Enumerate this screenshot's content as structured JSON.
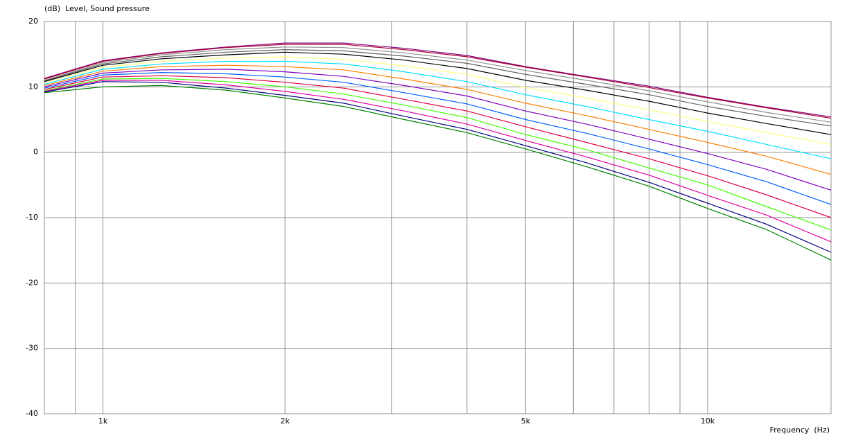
{
  "chart_data": {
    "type": "line",
    "y_label": "(dB)  Level, Sound pressure",
    "x_label": "Frequency  (Hz)",
    "x_log": true,
    "grid": true,
    "xlim": [
      800,
      16000
    ],
    "ylim": [
      -40,
      20
    ],
    "xticks": [
      {
        "value": 1000,
        "label": "1k"
      },
      {
        "value": 2000,
        "label": "2k"
      },
      {
        "value": 5000,
        "label": "5k"
      },
      {
        "value": 10000,
        "label": "10k"
      }
    ],
    "x_minor_ticks": [
      900,
      3000,
      4000,
      6000,
      7000,
      8000,
      9000
    ],
    "yticks": [
      20,
      10,
      0,
      -10,
      -20,
      -30,
      -40
    ],
    "x": [
      800,
      1000,
      1250,
      1600,
      2000,
      2500,
      3150,
      4000,
      5000,
      6300,
      8000,
      10000,
      12500,
      16000
    ],
    "series": [
      {
        "color": "#800080",
        "values": [
          11.3,
          14.0,
          15.2,
          16.1,
          16.7,
          16.7,
          15.9,
          14.8,
          13.1,
          11.6,
          10.1,
          8.4,
          6.9,
          5.4
        ]
      },
      {
        "color": "#b00030",
        "values": [
          11.2,
          13.9,
          15.1,
          16.0,
          16.5,
          16.5,
          15.7,
          14.6,
          13.0,
          11.5,
          9.9,
          8.3,
          6.8,
          5.2
        ]
      },
      {
        "color": "#909090",
        "values": [
          11.0,
          13.7,
          14.9,
          15.7,
          16.1,
          16.0,
          15.2,
          14.1,
          12.5,
          11.0,
          9.4,
          7.7,
          6.1,
          4.6
        ]
      },
      {
        "color": "#606060",
        "values": [
          10.9,
          13.5,
          14.6,
          15.3,
          15.7,
          15.5,
          14.7,
          13.6,
          11.9,
          10.4,
          8.8,
          7.0,
          5.5,
          4.0
        ]
      },
      {
        "color": "#000000",
        "values": [
          10.8,
          13.3,
          14.3,
          14.9,
          15.3,
          15.0,
          14.1,
          12.8,
          11.0,
          9.5,
          7.8,
          6.0,
          4.4,
          2.7
        ]
      },
      {
        "color": "#ffff80",
        "values": [
          10.6,
          13.0,
          13.9,
          14.4,
          14.6,
          14.2,
          13.2,
          11.9,
          9.9,
          8.3,
          6.5,
          4.7,
          3.0,
          1.2
        ]
      },
      {
        "color": "#00e0ff",
        "values": [
          10.4,
          12.7,
          13.5,
          13.9,
          13.9,
          13.5,
          12.3,
          10.8,
          8.8,
          7.0,
          5.0,
          3.2,
          1.2,
          -1.0
        ]
      },
      {
        "color": "#ff8000",
        "values": [
          10.2,
          12.4,
          13.1,
          13.3,
          13.1,
          12.6,
          11.2,
          9.6,
          7.5,
          5.6,
          3.5,
          1.5,
          -0.6,
          -3.4
        ]
      },
      {
        "color": "#8000c0",
        "values": [
          10.0,
          12.1,
          12.6,
          12.7,
          12.3,
          11.6,
          10.2,
          8.6,
          6.3,
          4.3,
          2.0,
          -0.2,
          -2.6,
          -5.8
        ]
      },
      {
        "color": "#0060ff",
        "values": [
          9.8,
          11.8,
          12.2,
          12.0,
          11.5,
          10.7,
          9.1,
          7.4,
          5.0,
          2.9,
          0.5,
          -1.9,
          -4.5,
          -8.0
        ]
      },
      {
        "color": "#e00040",
        "values": [
          9.6,
          11.5,
          11.7,
          11.4,
          10.7,
          9.8,
          8.1,
          6.3,
          3.9,
          1.5,
          -1.0,
          -3.6,
          -6.5,
          -10.0
        ]
      },
      {
        "color": "#40ff00",
        "values": [
          9.4,
          11.2,
          11.3,
          10.8,
          10.0,
          8.9,
          7.2,
          5.3,
          2.7,
          0.4,
          -2.4,
          -5.0,
          -8.3,
          -11.9
        ]
      },
      {
        "color": "#e000a0",
        "values": [
          9.3,
          11.0,
          11.0,
          10.3,
          9.3,
          8.1,
          6.3,
          4.3,
          1.8,
          -0.7,
          -3.5,
          -6.6,
          -9.6,
          -13.7
        ]
      },
      {
        "color": "#000080",
        "values": [
          9.2,
          10.8,
          10.7,
          9.8,
          8.7,
          7.5,
          5.5,
          3.5,
          1.0,
          -1.6,
          -4.6,
          -7.8,
          -11.0,
          -15.3
        ]
      },
      {
        "color": "#008000",
        "values": [
          9.1,
          10.0,
          10.2,
          9.5,
          8.3,
          7.0,
          5.0,
          3.0,
          0.5,
          -2.2,
          -5.2,
          -8.6,
          -11.8,
          -16.5
        ]
      }
    ]
  }
}
